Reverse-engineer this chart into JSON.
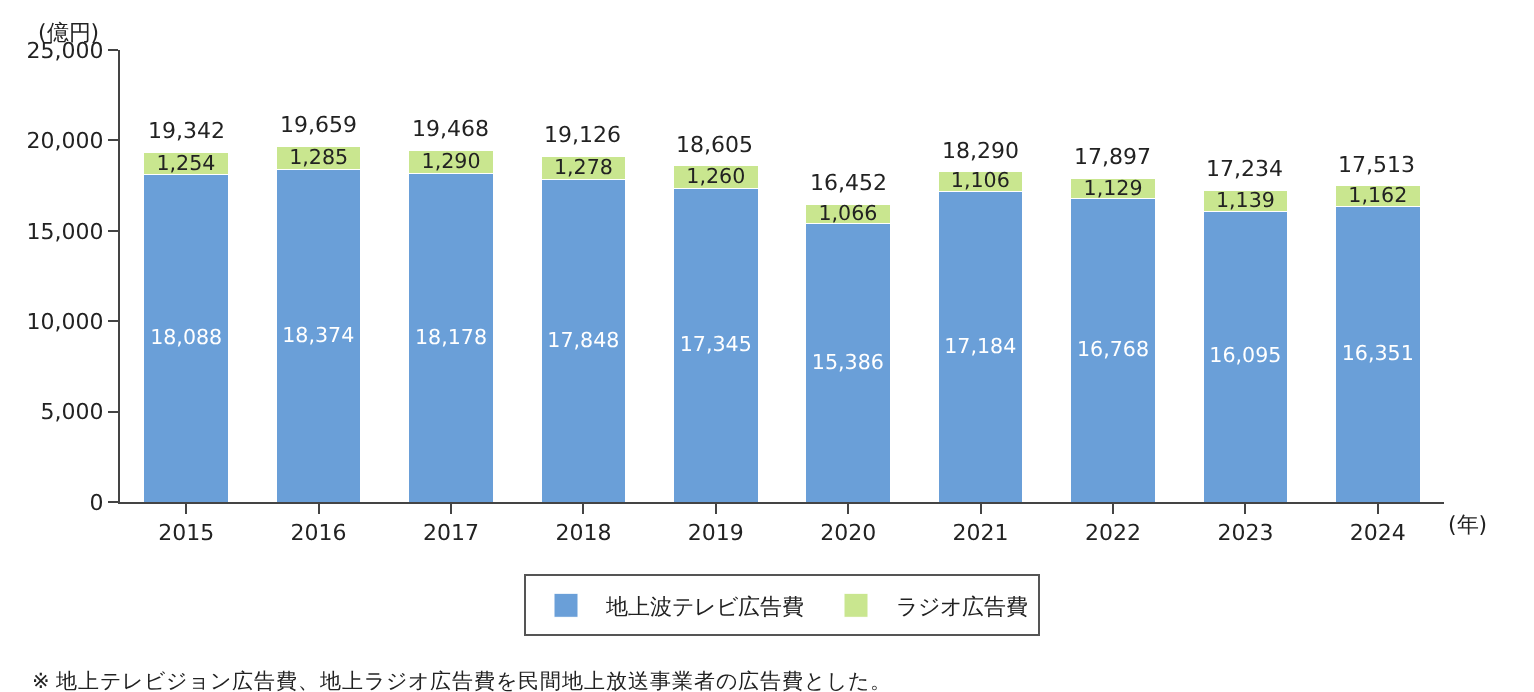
{
  "chart_data": {
    "type": "bar",
    "stacked": true,
    "xlabel": "(年)",
    "ylabel": "(億円)",
    "categories": [
      "2015",
      "2016",
      "2017",
      "2018",
      "2019",
      "2020",
      "2021",
      "2022",
      "2023",
      "2024"
    ],
    "series": [
      {
        "name": "地上波テレビ広告費",
        "color": "#6a9fd8",
        "values": [
          18088,
          18374,
          18178,
          17848,
          17345,
          15386,
          17184,
          16768,
          16095,
          16351
        ],
        "value_labels": [
          "18,088",
          "18,374",
          "18,178",
          "17,848",
          "17,345",
          "15,386",
          "17,184",
          "16,768",
          "16,095",
          "16,351"
        ]
      },
      {
        "name": "ラジオ広告費",
        "color": "#c9e68f",
        "values": [
          1254,
          1285,
          1290,
          1278,
          1260,
          1066,
          1106,
          1129,
          1139,
          1162
        ],
        "value_labels": [
          "1,254",
          "1,285",
          "1,290",
          "1,278",
          "1,260",
          "1,066",
          "1,106",
          "1,129",
          "1,139",
          "1,162"
        ]
      }
    ],
    "totals": [
      "19,342",
      "19,659",
      "19,468",
      "19,126",
      "18,605",
      "16,452",
      "18,290",
      "17,897",
      "17,234",
      "17,513"
    ],
    "ylim": [
      0,
      25000
    ],
    "yticks": [
      {
        "value": 0,
        "label": "0"
      },
      {
        "value": 5000,
        "label": "5,000"
      },
      {
        "value": 10000,
        "label": "10,000"
      },
      {
        "value": 15000,
        "label": "15,000"
      },
      {
        "value": 20000,
        "label": "20,000"
      },
      {
        "value": 25000,
        "label": "25,000"
      }
    ],
    "legend": "bottom",
    "annotations": [
      "※ 地上テレビジョン広告費、地上ラジオ広告費を民間地上放送事業者の広告費とした。"
    ]
  }
}
